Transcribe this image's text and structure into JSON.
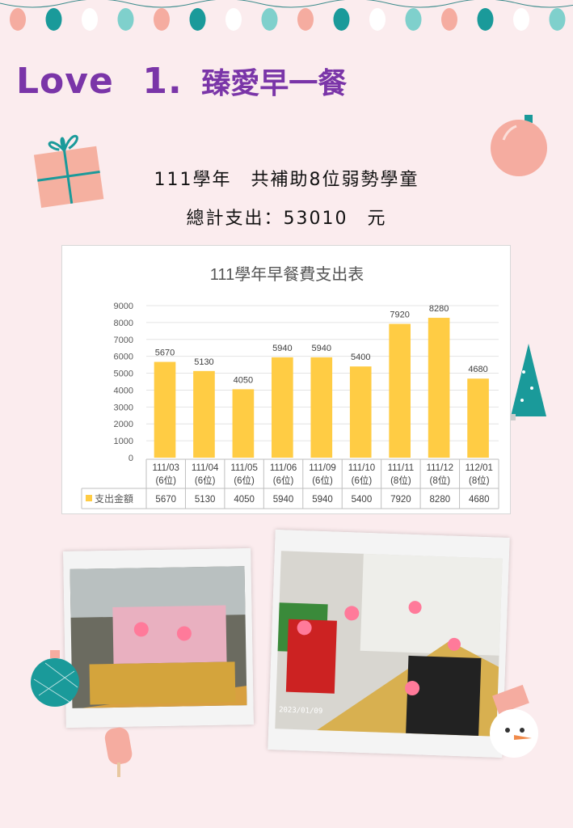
{
  "header": {
    "title_en": "Love",
    "title_num": "1.",
    "title_zh": "臻愛早一餐"
  },
  "summary": {
    "line1": "111學年　共補助8位弱勢學童",
    "line2": "總計支出：53010　元"
  },
  "colors": {
    "title": "#7a35a8",
    "bar": "#ffcc44",
    "background": "#fbecee"
  },
  "chart_data": {
    "type": "bar",
    "title": "111學年早餐費支出表",
    "categories": [
      "111/03 (6位)",
      "111/04 (6位)",
      "111/05 (6位)",
      "111/06 (6位)",
      "111/09 (6位)",
      "111/10 (6位)",
      "111/11 (8位)",
      "111/12 (8位)",
      "112/01 (8位)"
    ],
    "category_lines": [
      [
        "111/03",
        "(6位)"
      ],
      [
        "111/04",
        "(6位)"
      ],
      [
        "111/05",
        "(6位)"
      ],
      [
        "111/06",
        "(6位)"
      ],
      [
        "111/09",
        "(6位)"
      ],
      [
        "111/10",
        "(6位)"
      ],
      [
        "111/11",
        "(8位)"
      ],
      [
        "111/12",
        "(8位)"
      ],
      [
        "112/01",
        "(8位)"
      ]
    ],
    "series": [
      {
        "name": "支出金額",
        "values": [
          5670,
          5130,
          4050,
          5940,
          5940,
          5400,
          7920,
          8280,
          4680
        ]
      }
    ],
    "yticks": [
      0,
      1000,
      2000,
      3000,
      4000,
      5000,
      6000,
      7000,
      8000,
      9000
    ],
    "ylim": [
      0,
      9000
    ],
    "grid": true,
    "data_table": true,
    "data_labels": true
  },
  "photos": [
    {
      "stamp": ""
    },
    {
      "stamp": "2023/01/09"
    }
  ]
}
